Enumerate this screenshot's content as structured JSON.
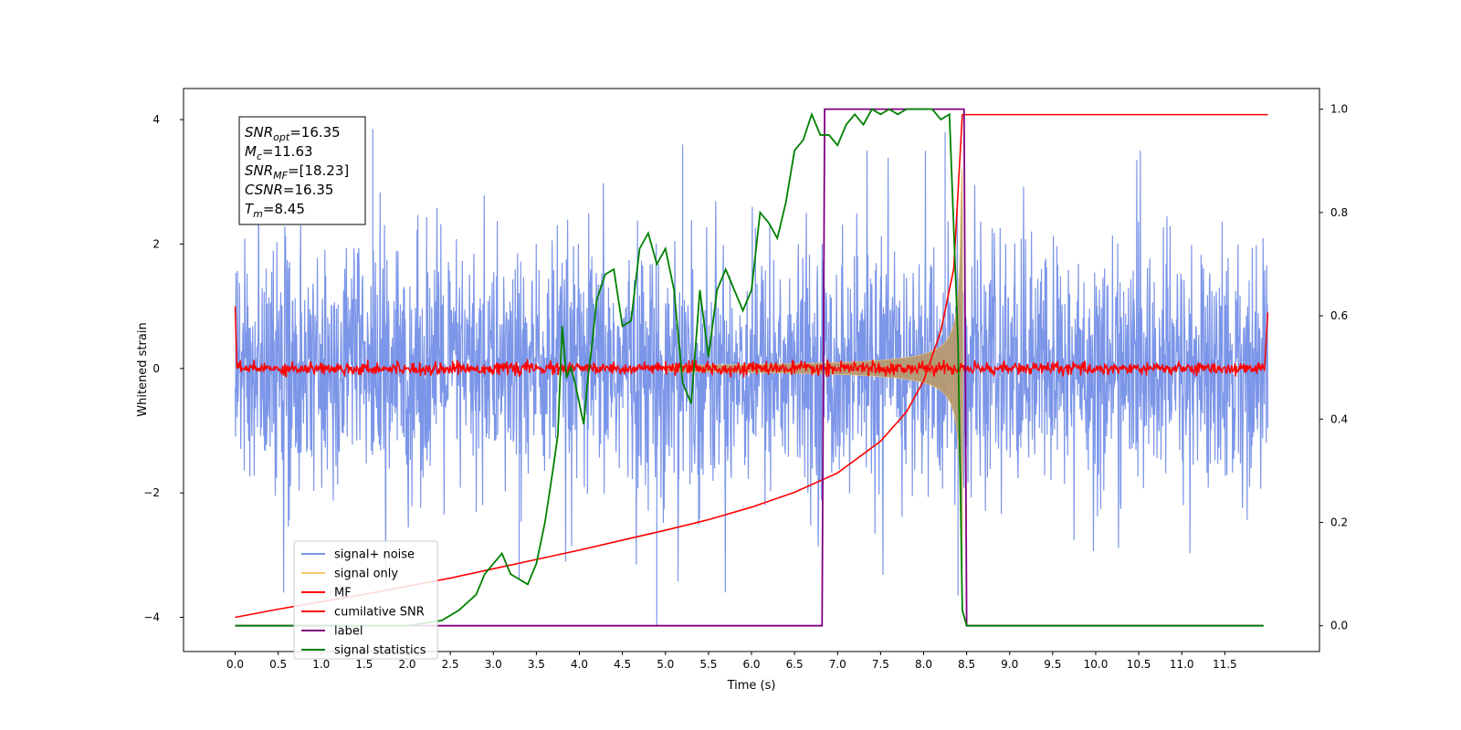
{
  "chart_data": {
    "type": "line",
    "title": "",
    "xlabel": "Time (s)",
    "ylabel": "Whitened strain",
    "y2label": "",
    "xlim": [
      -0.6,
      12.6
    ],
    "ylim": [
      -4.55,
      4.5
    ],
    "y2lim": [
      -0.05,
      1.04
    ],
    "x_ticks": [
      0.0,
      0.5,
      1.0,
      1.5,
      2.0,
      2.5,
      3.0,
      3.5,
      4.0,
      4.5,
      5.0,
      5.5,
      6.0,
      6.5,
      7.0,
      7.5,
      8.0,
      8.5,
      9.0,
      9.5,
      10.0,
      10.5,
      11.0,
      11.5
    ],
    "x_tick_labels": [
      "0.0",
      "0.5",
      "1.0",
      "1.5",
      "2.0",
      "2.5",
      "3.0",
      "3.5",
      "4.0",
      "4.5",
      "5.0",
      "5.5",
      "6.0",
      "6.5",
      "7.0",
      "7.5",
      "8.0",
      "8.5",
      "9.0",
      "9.5",
      "10.0",
      "10.5",
      "11.0",
      "11.5"
    ],
    "y_ticks": [
      -4,
      -2,
      0,
      2,
      4
    ],
    "y_tick_labels": [
      "−4",
      "−2",
      "0",
      "2",
      "4"
    ],
    "y2_ticks": [
      0.0,
      0.2,
      0.4,
      0.6,
      0.8,
      1.0
    ],
    "y2_tick_labels": [
      "0.0",
      "0.2",
      "0.4",
      "0.6",
      "0.8",
      "1.0"
    ],
    "grid": false,
    "legend_position": "lower-left",
    "annotation_box": {
      "lines": [
        {
          "sym": "SNR",
          "sub": "opt",
          "value": "=16.35"
        },
        {
          "sym": "M",
          "sub": "c",
          "value": "=11.63"
        },
        {
          "sym": "SNR",
          "sub": "MF",
          "value": "=[18.23]"
        },
        {
          "sym": "CSNR",
          "sub": "",
          "value": "=16.35"
        },
        {
          "sym": "T",
          "sub": "m",
          "value": "=8.45"
        }
      ]
    },
    "series": [
      {
        "name": "signal+ noise",
        "axis": "left",
        "color": "#7b95e8",
        "description_range": [
          0.0,
          12.0
        ],
        "amplitude_envelope": 2.4,
        "min_observed": -4.15,
        "max_observed": 3.85
      },
      {
        "name": "signal only",
        "axis": "left",
        "color": "#f5c86a",
        "fill_color": "#b89a72",
        "chirp_start": 5.0,
        "chirp_end": 8.45,
        "peak_amplitude": 3.2
      },
      {
        "name": "MF",
        "axis": "left",
        "color": "#ff0000",
        "noise_level": 0.05,
        "edge_values": [
          1.0,
          0.9
        ]
      },
      {
        "name": "cumilative SNR",
        "axis": "left",
        "color": "#ff0000",
        "x": [
          0.0,
          0.5,
          1.0,
          1.5,
          2.0,
          2.5,
          3.0,
          3.5,
          4.0,
          4.5,
          5.0,
          5.5,
          6.0,
          6.5,
          7.0,
          7.5,
          7.8,
          8.0,
          8.2,
          8.35,
          8.45,
          12.0
        ],
        "y": [
          -4.0,
          -3.87,
          -3.75,
          -3.63,
          -3.5,
          -3.37,
          -3.22,
          -3.07,
          -2.92,
          -2.76,
          -2.6,
          -2.43,
          -2.23,
          -1.99,
          -1.68,
          -1.17,
          -0.7,
          -0.2,
          0.6,
          1.6,
          4.08,
          4.08
        ]
      },
      {
        "name": "label",
        "axis": "right",
        "color": "#800080",
        "x": [
          0.0,
          6.82,
          6.85,
          8.47,
          8.5,
          11.95
        ],
        "y": [
          0.0,
          0.0,
          1.0,
          1.0,
          0.0,
          0.0
        ]
      },
      {
        "name": "signal statistics",
        "axis": "right",
        "color": "#008000",
        "x": [
          0.0,
          0.5,
          1.0,
          1.5,
          2.0,
          2.4,
          2.6,
          2.8,
          2.9,
          3.0,
          3.1,
          3.2,
          3.3,
          3.4,
          3.5,
          3.6,
          3.7,
          3.75,
          3.8,
          3.85,
          3.9,
          3.95,
          4.0,
          4.05,
          4.1,
          4.15,
          4.2,
          4.3,
          4.4,
          4.5,
          4.6,
          4.7,
          4.8,
          4.9,
          5.0,
          5.1,
          5.2,
          5.3,
          5.4,
          5.5,
          5.6,
          5.7,
          5.8,
          5.9,
          6.0,
          6.1,
          6.2,
          6.3,
          6.4,
          6.5,
          6.6,
          6.7,
          6.8,
          6.9,
          7.0,
          7.1,
          7.2,
          7.3,
          7.4,
          7.5,
          7.6,
          7.7,
          7.8,
          7.9,
          8.0,
          8.1,
          8.2,
          8.3,
          8.4,
          8.45,
          8.5,
          8.6,
          9.0,
          10.0,
          11.0,
          11.95
        ],
        "y": [
          0.0,
          0.0,
          0.0,
          0.0,
          0.0,
          0.01,
          0.03,
          0.06,
          0.1,
          0.12,
          0.14,
          0.1,
          0.09,
          0.08,
          0.12,
          0.2,
          0.31,
          0.37,
          0.58,
          0.48,
          0.5,
          0.47,
          0.43,
          0.39,
          0.48,
          0.55,
          0.63,
          0.68,
          0.69,
          0.58,
          0.59,
          0.73,
          0.76,
          0.7,
          0.73,
          0.65,
          0.47,
          0.43,
          0.65,
          0.52,
          0.65,
          0.69,
          0.65,
          0.61,
          0.65,
          0.8,
          0.78,
          0.75,
          0.82,
          0.92,
          0.94,
          0.99,
          0.95,
          0.95,
          0.93,
          0.97,
          0.99,
          0.97,
          1.0,
          0.99,
          1.0,
          0.99,
          1.0,
          1.0,
          1.0,
          1.0,
          0.98,
          0.99,
          0.55,
          0.03,
          0.0,
          0.0,
          0.0,
          0.0,
          0.0,
          0.0
        ]
      }
    ]
  }
}
